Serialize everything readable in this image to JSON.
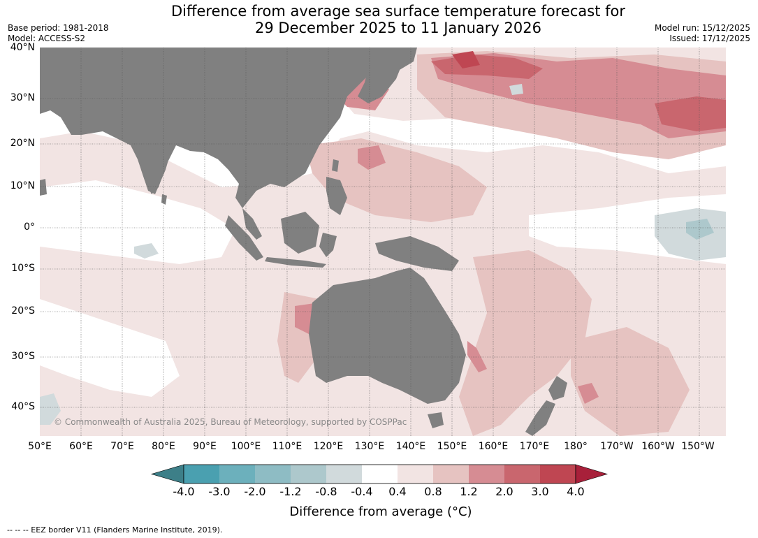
{
  "header": {
    "title_line1": "Difference from average sea surface temperature forecast for",
    "title_line2": "29 December 2025 to 11 January 2026",
    "base_period": "Base period: 1981-2018",
    "model": "Model: ACCESS-S2",
    "model_run": "Model run: 15/12/2025",
    "issued": "Issued: 17/12/2025"
  },
  "map": {
    "lat_labels": [
      "40°N",
      "30°N",
      "20°N",
      "10°N",
      "0°",
      "10°S",
      "20°S",
      "30°S",
      "40°S"
    ],
    "lon_labels": [
      "50°E",
      "60°E",
      "70°E",
      "80°E",
      "90°E",
      "100°E",
      "110°E",
      "120°E",
      "130°E",
      "140°E",
      "150°E",
      "160°E",
      "170°E",
      "180°",
      "170°W",
      "160°W",
      "150°W"
    ],
    "copyright": "© Commonwealth of Australia 2025, Bureau of Meteorology, supported by COSPPac",
    "colors": {
      "land": "#808080",
      "grid": "#555555"
    }
  },
  "colorbar": {
    "ticks": [
      "-4.0",
      "-3.0",
      "-2.0",
      "-1.2",
      "-0.8",
      "-0.4",
      "0.4",
      "0.8",
      "1.2",
      "2.0",
      "3.0",
      "4.0"
    ],
    "colors": [
      "#4aa0b0",
      "#6cb0bc",
      "#8ebcc4",
      "#adc8cc",
      "#d1dadc",
      "#ffffff",
      "#f2e4e3",
      "#e6c3c1",
      "#d68c93",
      "#c9666e",
      "#bf4652"
    ],
    "under_color": "#3d7f88",
    "over_color": "#a8203a",
    "label": "Difference from average (°C)"
  },
  "footer": {
    "eez_note": "--  --  -- EEZ border V11 (Flanders Marine Institute, 2019)."
  }
}
